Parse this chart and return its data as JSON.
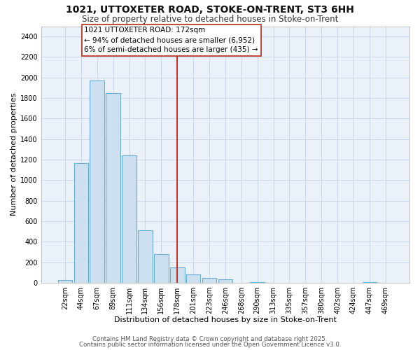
{
  "title": "1021, UTTOXETER ROAD, STOKE-ON-TRENT, ST3 6HH",
  "subtitle": "Size of property relative to detached houses in Stoke-on-Trent",
  "xlabel": "Distribution of detached houses by size in Stoke-on-Trent",
  "ylabel": "Number of detached properties",
  "categories": [
    "22sqm",
    "44sqm",
    "67sqm",
    "89sqm",
    "111sqm",
    "134sqm",
    "156sqm",
    "178sqm",
    "201sqm",
    "223sqm",
    "246sqm",
    "268sqm",
    "290sqm",
    "313sqm",
    "335sqm",
    "357sqm",
    "380sqm",
    "402sqm",
    "424sqm",
    "447sqm",
    "469sqm"
  ],
  "values": [
    25,
    1170,
    1970,
    1850,
    1240,
    510,
    280,
    150,
    80,
    45,
    38,
    0,
    10,
    0,
    0,
    0,
    0,
    0,
    0,
    10,
    0
  ],
  "bar_color": "#cce0f0",
  "bar_edge_color": "#6aaed6",
  "vline_index": 7,
  "vline_color": "#c0392b",
  "annotation_title": "1021 UTTOXETER ROAD: 172sqm",
  "annotation_line1": "← 94% of detached houses are smaller (6,952)",
  "annotation_line2": "6% of semi-detached houses are larger (435) →",
  "annotation_box_color": "#ffffff",
  "annotation_box_edge": "#c0392b",
  "ylim": [
    0,
    2500
  ],
  "yticks": [
    0,
    200,
    400,
    600,
    800,
    1000,
    1200,
    1400,
    1600,
    1800,
    2000,
    2200,
    2400
  ],
  "background_color": "#ffffff",
  "plot_background": "#eaf1f8",
  "grid_color": "#c8d8e8",
  "title_fontsize": 10,
  "subtitle_fontsize": 8.5,
  "axis_label_fontsize": 8,
  "tick_fontsize": 7,
  "annotation_fontsize": 7.5,
  "footer_fontsize": 6.2
}
